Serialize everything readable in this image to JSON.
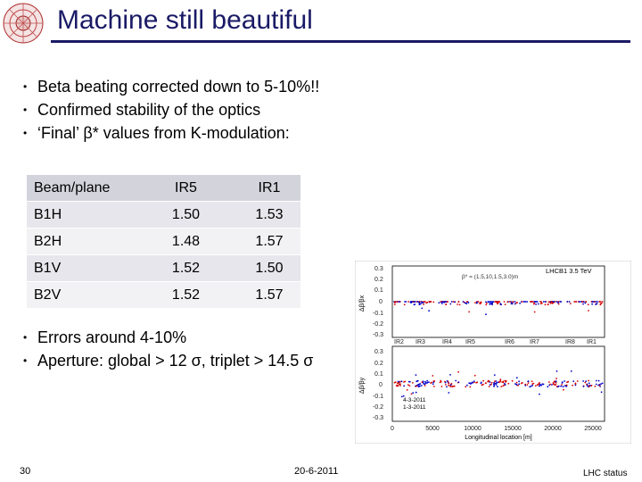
{
  "title": "Machine still beautiful",
  "bullets": [
    "Beta beating corrected down to 5-10%!!",
    "Confirmed stability of the optics",
    "‘Final’ β* values from K-modulation:"
  ],
  "table": {
    "header": [
      "Beam/plane",
      "IR5",
      "IR1"
    ],
    "rows": [
      [
        "B1H",
        "1.50",
        "1.53"
      ],
      [
        "B2H",
        "1.48",
        "1.57"
      ],
      [
        "B1V",
        "1.52",
        "1.50"
      ],
      [
        "B2V",
        "1.52",
        "1.57"
      ]
    ]
  },
  "bullets2": [
    "Errors around 4-10%",
    "Aperture: global > 12 σ, triplet > 14.5 σ"
  ],
  "plot": {
    "legend": "LHCB1 3.5 TeV",
    "beta_text": "β* = (1.5,10,1.5,3.0)m",
    "ir_labels": [
      "IR2",
      "IR3",
      "IR4",
      "IR5",
      "IR6",
      "IR7",
      "IR8",
      "IR1"
    ],
    "y_ticks": [
      "0.3",
      "0.2",
      "0.1",
      "0",
      "-0.1",
      "-0.2",
      "-0.3"
    ],
    "x_ticks": [
      "0",
      "5000",
      "10000",
      "15000",
      "20000",
      "25000"
    ],
    "x_label": "Longitudinal location [m]",
    "y_label_top": "Δβ/βx",
    "y_label_bottom": "Δβ/βy",
    "date_labels": [
      "4-3-2011",
      "1-3-2011"
    ],
    "colors": {
      "red": "#d40000",
      "blue": "#0000cc",
      "frame": "#000000"
    }
  },
  "footer": {
    "slide_number": "30",
    "date": "20-6-2011",
    "right": "LHC status"
  }
}
